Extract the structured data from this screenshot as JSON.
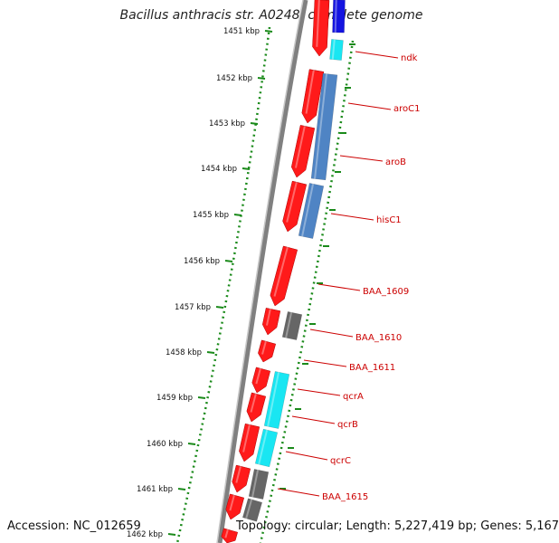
{
  "title": "Bacillus anthracis str. A0248, complete genome",
  "accession": "Accession: NC_012659",
  "summary": "Topology: circular; Length: 5,227,419 bp; Genes: 5,167",
  "ruler_ticks": [
    "1451 kbp",
    "1452 kbp",
    "1453 kbp",
    "1454 kbp",
    "1455 kbp",
    "1456 kbp",
    "1457 kbp",
    "1458 kbp",
    "1459 kbp",
    "1460 kbp",
    "1461 kbp",
    "1462 kbp"
  ],
  "gene_labels": [
    "ndk",
    "aroC1",
    "aroB",
    "hisC1",
    "BAA_1609",
    "BAA_1610",
    "BAA_1611",
    "qcrA",
    "qcrB",
    "qcrC",
    "BAA_1615"
  ],
  "colors": {
    "forward_cds": "#ff1a1a",
    "label": "#cc0000",
    "ruler": "#1a8a1a",
    "backbone": "#808080",
    "cog_steelblue": "#4f84c4",
    "cog_cyan": "#19e6f2",
    "cog_gray": "#666666",
    "cog_blue": "#1414e0"
  }
}
